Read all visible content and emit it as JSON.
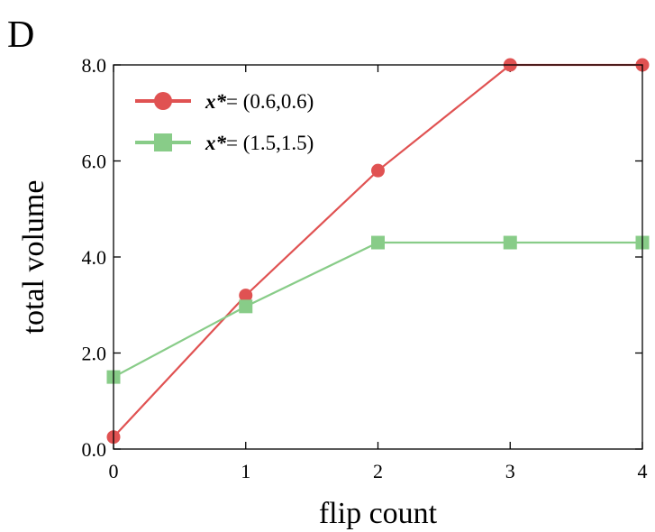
{
  "panel_label": "D",
  "chart_data": {
    "type": "line",
    "title": "",
    "xlabel": "flip count",
    "ylabel": "total volume",
    "x": [
      0,
      1,
      2,
      3,
      4
    ],
    "x_ticks": [
      "0",
      "1",
      "2",
      "3",
      "4"
    ],
    "y_ticks": [
      "0.0",
      "2.0",
      "4.0",
      "6.0",
      "8.0"
    ],
    "xlim": [
      0,
      4
    ],
    "ylim": [
      0,
      8
    ],
    "grid": false,
    "legend_position": "top-left",
    "series": [
      {
        "name_prefix": "x*",
        "name_suffix": "= (0.6,0.6)",
        "values": [
          0.25,
          3.2,
          5.8,
          8.0,
          8.0
        ],
        "color": "#e05252",
        "marker": "circle"
      },
      {
        "name_prefix": "x*",
        "name_suffix": "= (1.5,1.5)",
        "values": [
          1.5,
          2.97,
          4.3,
          4.3,
          4.3
        ],
        "color": "#88cc88",
        "marker": "square"
      }
    ]
  }
}
